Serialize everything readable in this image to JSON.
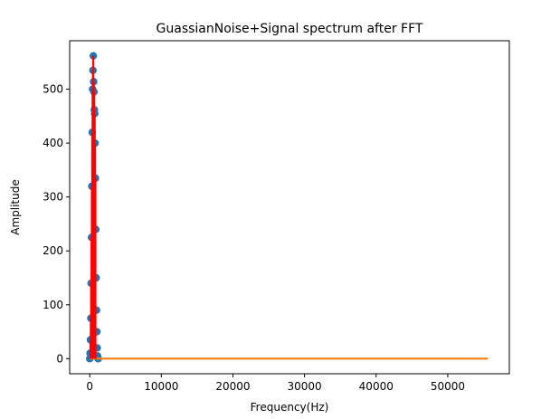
{
  "chart_data": {
    "type": "stem",
    "title": "GuassianNoise+Signal spectrum after FFT",
    "xlabel": "Frequency(Hz)",
    "ylabel": "Amplitude",
    "xlim": [
      -2800,
      58600
    ],
    "ylim": [
      -28,
      590
    ],
    "xticks": [
      0,
      10000,
      20000,
      30000,
      40000,
      50000
    ],
    "xtick_labels": [
      "0",
      "10000",
      "20000",
      "30000",
      "40000",
      "50000"
    ],
    "yticks": [
      0,
      100,
      200,
      300,
      400,
      500
    ],
    "ytick_labels": [
      "0",
      "100",
      "200",
      "300",
      "400",
      "500"
    ],
    "grid": false,
    "series": [
      {
        "role": "spectrum-markers",
        "color": "#1f77b4",
        "marker": "circle",
        "x": [
          0,
          50,
          100,
          150,
          200,
          250,
          300,
          350,
          400,
          450,
          500,
          550,
          600,
          650,
          700,
          750,
          800,
          850,
          900,
          950,
          1000,
          1050,
          1100,
          1150,
          1200
        ],
        "y": [
          0,
          10,
          35,
          75,
          140,
          225,
          320,
          420,
          500,
          535,
          562,
          514,
          495,
          462,
          455,
          400,
          335,
          240,
          150,
          90,
          50,
          20,
          5,
          0,
          0
        ]
      },
      {
        "role": "stem-lines",
        "color": "#ff0000",
        "x": [
          100,
          150,
          200,
          250,
          300,
          350,
          400,
          450,
          500,
          550,
          600,
          650,
          700,
          750,
          800
        ],
        "y": [
          35,
          75,
          140,
          225,
          320,
          420,
          500,
          535,
          562,
          514,
          495,
          462,
          455,
          400,
          335
        ]
      },
      {
        "role": "baseline",
        "color": "#ff7f0e",
        "x": [
          0,
          55600
        ],
        "y": [
          0,
          0
        ]
      }
    ]
  }
}
